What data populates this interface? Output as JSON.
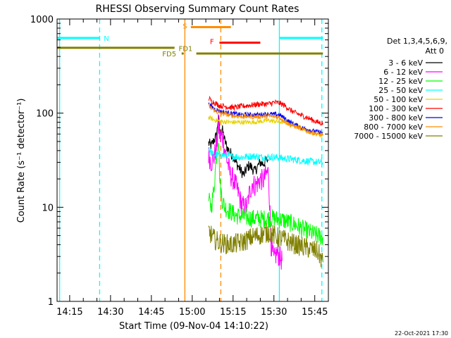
{
  "chart_data": {
    "type": "line",
    "title": "RHESSI Observing Summary Count Rates",
    "xlabel": "Start Time (09-Nov-04 14:10:22)",
    "ylabel": "Count Rate (s⁻¹ detector⁻¹)",
    "footer_date": "22-Oct-2021 17:30",
    "y_scale": "log",
    "ylim": [
      1,
      1000
    ],
    "y_ticks": [
      "1",
      "10",
      "100",
      "1000"
    ],
    "xlim_minutes": [
      850.37,
      950.0
    ],
    "x_ticks": [
      "14:15",
      "14:30",
      "14:45",
      "15:00",
      "15:15",
      "15:30",
      "15:45"
    ],
    "x_tick_minutes": [
      855,
      870,
      885,
      900,
      915,
      930,
      945
    ],
    "legend_header": [
      "Det 1,3,4,5,6,9,",
      "Att 0"
    ],
    "series": [
      {
        "name": "3 - 6 keV",
        "color": "#000000"
      },
      {
        "name": "6 - 12 keV",
        "color": "#ff00ff"
      },
      {
        "name": "12 - 25 keV",
        "color": "#00ff00"
      },
      {
        "name": "25 - 50 keV",
        "color": "#00ffff"
      },
      {
        "name": "50 - 100 keV",
        "color": "#e6d200"
      },
      {
        "name": "100 - 300 keV",
        "color": "#ff0000"
      },
      {
        "name": "300 - 800 keV",
        "color": "#0000ff"
      },
      {
        "name": "800 - 7000 keV",
        "color": "#ff8c00"
      },
      {
        "name": "7000 - 15000 keV",
        "color": "#808000"
      }
    ],
    "profiles": [
      {
        "series": 0,
        "points": [
          [
            906,
            48
          ],
          [
            907,
            45
          ],
          [
            908,
            52
          ],
          [
            909,
            58
          ],
          [
            909.6,
            95
          ],
          [
            910.2,
            60
          ],
          [
            911,
            68
          ],
          [
            912,
            50
          ],
          [
            913,
            42
          ],
          [
            914,
            38
          ],
          [
            915,
            35
          ],
          [
            916,
            30
          ],
          [
            917,
            27
          ],
          [
            918,
            24
          ],
          [
            919,
            22
          ],
          [
            920,
            26
          ],
          [
            921,
            28
          ],
          [
            922,
            26
          ],
          [
            923,
            24
          ],
          [
            924,
            27
          ],
          [
            925,
            30
          ],
          [
            926,
            29
          ],
          [
            927,
            31
          ],
          [
            928,
            32
          ]
        ],
        "noise": 0.06
      },
      {
        "series": 1,
        "points": [
          [
            906,
            36
          ],
          [
            907,
            30
          ],
          [
            908,
            34
          ],
          [
            909,
            45
          ],
          [
            909.6,
            75
          ],
          [
            910.2,
            55
          ],
          [
            911,
            58
          ],
          [
            912,
            40
          ],
          [
            913,
            30
          ],
          [
            914,
            22
          ],
          [
            915,
            20
          ],
          [
            916,
            17
          ],
          [
            917,
            14
          ],
          [
            918,
            11
          ],
          [
            919,
            10
          ],
          [
            920,
            10
          ],
          [
            921,
            14
          ],
          [
            922,
            18
          ],
          [
            923,
            17
          ],
          [
            924,
            18
          ],
          [
            925,
            20
          ],
          [
            926,
            19
          ],
          [
            927,
            22
          ],
          [
            928,
            24
          ],
          [
            929,
            4
          ],
          [
            930,
            2.7
          ],
          [
            931,
            3.3
          ],
          [
            932,
            3.0
          ],
          [
            933,
            2.7
          ]
        ],
        "noise": 0.12
      },
      {
        "series": 2,
        "points": [
          [
            906,
            12
          ],
          [
            907,
            10
          ],
          [
            908,
            16
          ],
          [
            909,
            40
          ],
          [
            909.6,
            58
          ],
          [
            910.2,
            18
          ],
          [
            911,
            12
          ],
          [
            912,
            10
          ],
          [
            914,
            9
          ],
          [
            916,
            8.2
          ],
          [
            918,
            8
          ],
          [
            920,
            7.8
          ],
          [
            922,
            7.6
          ],
          [
            924,
            7.6
          ],
          [
            926,
            7.5
          ],
          [
            928,
            7.6
          ],
          [
            930,
            7.6
          ],
          [
            932,
            7.4
          ],
          [
            934,
            7.2
          ],
          [
            936,
            6.8
          ],
          [
            938,
            6.5
          ],
          [
            940,
            6.0
          ],
          [
            942,
            5.6
          ],
          [
            944,
            5.3
          ],
          [
            946,
            5.0
          ],
          [
            948,
            4.8
          ]
        ],
        "noise": 0.1
      },
      {
        "series": 3,
        "points": [
          [
            906,
            42
          ],
          [
            907,
            38
          ],
          [
            908,
            36
          ],
          [
            910,
            36
          ],
          [
            914,
            35
          ],
          [
            918,
            34
          ],
          [
            922,
            35
          ],
          [
            926,
            34
          ],
          [
            930,
            34
          ],
          [
            934,
            33
          ],
          [
            938,
            32
          ],
          [
            942,
            31
          ],
          [
            946,
            30
          ],
          [
            948,
            30
          ]
        ],
        "noise": 0.04
      },
      {
        "series": 4,
        "points": [
          [
            906,
            90
          ],
          [
            908,
            85
          ],
          [
            910,
            82
          ],
          [
            914,
            80
          ],
          [
            918,
            80
          ],
          [
            922,
            80
          ],
          [
            926,
            82
          ],
          [
            928,
            84
          ],
          [
            930,
            82
          ],
          [
            934,
            80
          ],
          [
            938,
            75
          ],
          [
            940,
            70
          ],
          [
            942,
            65
          ],
          [
            944,
            62
          ],
          [
            946,
            60
          ],
          [
            948,
            58
          ]
        ],
        "noise": 0.025
      },
      {
        "series": 5,
        "points": [
          [
            906,
            145
          ],
          [
            907,
            135
          ],
          [
            908,
            130
          ],
          [
            909,
            125
          ],
          [
            910,
            120
          ],
          [
            912,
            118
          ],
          [
            914,
            115
          ],
          [
            916,
            115
          ],
          [
            918,
            118
          ],
          [
            920,
            120
          ],
          [
            922,
            122
          ],
          [
            924,
            124
          ],
          [
            926,
            125
          ],
          [
            928,
            125
          ],
          [
            930,
            130
          ],
          [
            932,
            128
          ],
          [
            934,
            120
          ],
          [
            936,
            108
          ],
          [
            938,
            100
          ],
          [
            940,
            95
          ],
          [
            942,
            90
          ],
          [
            944,
            85
          ],
          [
            946,
            80
          ],
          [
            948,
            78
          ]
        ],
        "noise": 0.03
      },
      {
        "series": 6,
        "points": [
          [
            906,
            125
          ],
          [
            907,
            118
          ],
          [
            908,
            112
          ],
          [
            909,
            108
          ],
          [
            910,
            105
          ],
          [
            912,
            102
          ],
          [
            914,
            100
          ],
          [
            916,
            98
          ],
          [
            918,
            96
          ],
          [
            920,
            96
          ],
          [
            922,
            96
          ],
          [
            924,
            96
          ],
          [
            926,
            97
          ],
          [
            928,
            98
          ],
          [
            930,
            97
          ],
          [
            932,
            96
          ],
          [
            934,
            88
          ],
          [
            936,
            80
          ],
          [
            938,
            75
          ],
          [
            940,
            70
          ],
          [
            942,
            68
          ],
          [
            944,
            65
          ],
          [
            946,
            63
          ],
          [
            948,
            62
          ]
        ],
        "noise": 0.025
      },
      {
        "series": 7,
        "points": [
          [
            906,
            120
          ],
          [
            907,
            112
          ],
          [
            908,
            108
          ],
          [
            909,
            104
          ],
          [
            910,
            100
          ],
          [
            912,
            98
          ],
          [
            914,
            95
          ],
          [
            916,
            93
          ],
          [
            918,
            92
          ],
          [
            920,
            92
          ],
          [
            922,
            92
          ],
          [
            924,
            92
          ],
          [
            926,
            92
          ],
          [
            928,
            93
          ],
          [
            930,
            92
          ],
          [
            932,
            90
          ],
          [
            934,
            82
          ],
          [
            936,
            75
          ],
          [
            938,
            72
          ],
          [
            940,
            68
          ],
          [
            942,
            65
          ],
          [
            944,
            62
          ],
          [
            946,
            60
          ],
          [
            948,
            58
          ]
        ],
        "noise": 0.025
      },
      {
        "series": 8,
        "points": [
          [
            906,
            5.6
          ],
          [
            908,
            4.6
          ],
          [
            910,
            4.2
          ],
          [
            914,
            4.0
          ],
          [
            918,
            4.2
          ],
          [
            922,
            4.8
          ],
          [
            926,
            5.2
          ],
          [
            928,
            5.4
          ],
          [
            930,
            5.0
          ],
          [
            934,
            4.5
          ],
          [
            938,
            4.0
          ],
          [
            942,
            3.7
          ],
          [
            946,
            3.4
          ],
          [
            948,
            2.6
          ]
        ],
        "noise": 0.11
      }
    ],
    "flag_bars": [
      {
        "label": "N",
        "color": "#00ffff",
        "level": 630,
        "segments": [
          [
            850.37,
            866
          ],
          [
            932,
            948
          ]
        ]
      },
      {
        "label": "S",
        "color": "#ff8c00",
        "level": 820,
        "segments": [
          [
            899.5,
            914.2
          ]
        ]
      },
      {
        "label": "F",
        "color": "#ff0000",
        "level": 560,
        "segments": [
          [
            910,
            925
          ]
        ]
      },
      {
        "label": "FD1",
        "color": "#808000",
        "level": 495,
        "segments": [
          [
            850.37,
            893.5
          ]
        ]
      },
      {
        "label": "FD5",
        "color": "#808000",
        "level": 430,
        "segments": [
          [
            901.5,
            948
          ]
        ]
      }
    ],
    "flag_labels": [
      {
        "text": "N",
        "color": "#00ffff",
        "x": 867.5,
        "y": 630
      },
      {
        "text": "S",
        "color": "#ff8c00",
        "x": 896.5,
        "y": 850
      },
      {
        "text": "F",
        "color": "#ff0000",
        "x": 906.5,
        "y": 580
      },
      {
        "text": "FD1",
        "color": "#808000",
        "x": 895,
        "y": 490
      },
      {
        "text": "FD5",
        "color": "#808000",
        "x": 889,
        "y": 430
      }
    ],
    "fd5_dot": {
      "x": 896.5,
      "y": 430
    },
    "vlines": [
      {
        "x": 851.3,
        "color": "#00ffff",
        "style": "solid"
      },
      {
        "x": 866.0,
        "color": "#00ffff",
        "style": "dashed"
      },
      {
        "x": 897.3,
        "color": "#ff8c00",
        "style": "solid"
      },
      {
        "x": 910.5,
        "color": "#ff8c00",
        "style": "dashed"
      },
      {
        "x": 932.0,
        "color": "#00ffff",
        "style": "solid"
      },
      {
        "x": 947.6,
        "color": "#00ffff",
        "style": "dashed"
      }
    ]
  }
}
